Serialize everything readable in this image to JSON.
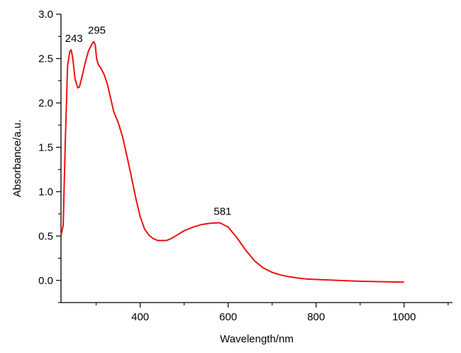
{
  "chart_data": {
    "type": "line",
    "title": "",
    "xlabel": "Wavelength/nm",
    "ylabel": "Absorbance/a.u.",
    "xlim": [
      220,
      1110
    ],
    "ylim": [
      -0.25,
      3.0
    ],
    "x_ticks": [
      400,
      600,
      800,
      1000
    ],
    "x_tick_labels": [
      "400",
      "600",
      "800",
      "1000"
    ],
    "x_minor_ticks": [
      300,
      500,
      700,
      900,
      1100
    ],
    "y_ticks": [
      0.0,
      0.5,
      1.0,
      1.5,
      2.0,
      2.5,
      3.0
    ],
    "y_tick_labels": [
      "0.0",
      "0.5",
      "1.0",
      "1.5",
      "2.0",
      "2.5",
      "3.0"
    ],
    "y_minor_ticks": [
      -0.25,
      0.25,
      0.75,
      1.25,
      1.75,
      2.25,
      2.75
    ],
    "grid": false,
    "series": [
      {
        "name": "Absorbance",
        "color": "#ee1111",
        "x": [
          220,
          225,
          230,
          235,
          240,
          243,
          247,
          252,
          258,
          262,
          268,
          275,
          282,
          288,
          292,
          295,
          298,
          301,
          305,
          310,
          318,
          325,
          333,
          340,
          350,
          360,
          370,
          380,
          390,
          400,
          410,
          420,
          430,
          440,
          450,
          460,
          470,
          480,
          490,
          500,
          520,
          540,
          560,
          581,
          600,
          620,
          640,
          660,
          680,
          700,
          720,
          740,
          760,
          780,
          800,
          850,
          900,
          950,
          1000
        ],
        "y": [
          0.5,
          0.62,
          1.6,
          2.42,
          2.58,
          2.6,
          2.5,
          2.27,
          2.17,
          2.18,
          2.3,
          2.45,
          2.58,
          2.64,
          2.68,
          2.69,
          2.65,
          2.5,
          2.43,
          2.4,
          2.32,
          2.22,
          2.05,
          1.9,
          1.78,
          1.62,
          1.4,
          1.17,
          0.93,
          0.72,
          0.58,
          0.51,
          0.47,
          0.45,
          0.45,
          0.45,
          0.47,
          0.5,
          0.53,
          0.56,
          0.6,
          0.63,
          0.645,
          0.65,
          0.6,
          0.48,
          0.34,
          0.22,
          0.14,
          0.09,
          0.06,
          0.04,
          0.025,
          0.015,
          0.01,
          0.0,
          -0.01,
          -0.015,
          -0.02
        ]
      }
    ],
    "annotations": [
      {
        "text": "243",
        "x": 243,
        "y": 2.6
      },
      {
        "text": "295",
        "x": 295,
        "y": 2.69
      },
      {
        "text": "581",
        "x": 581,
        "y": 0.65
      }
    ]
  }
}
